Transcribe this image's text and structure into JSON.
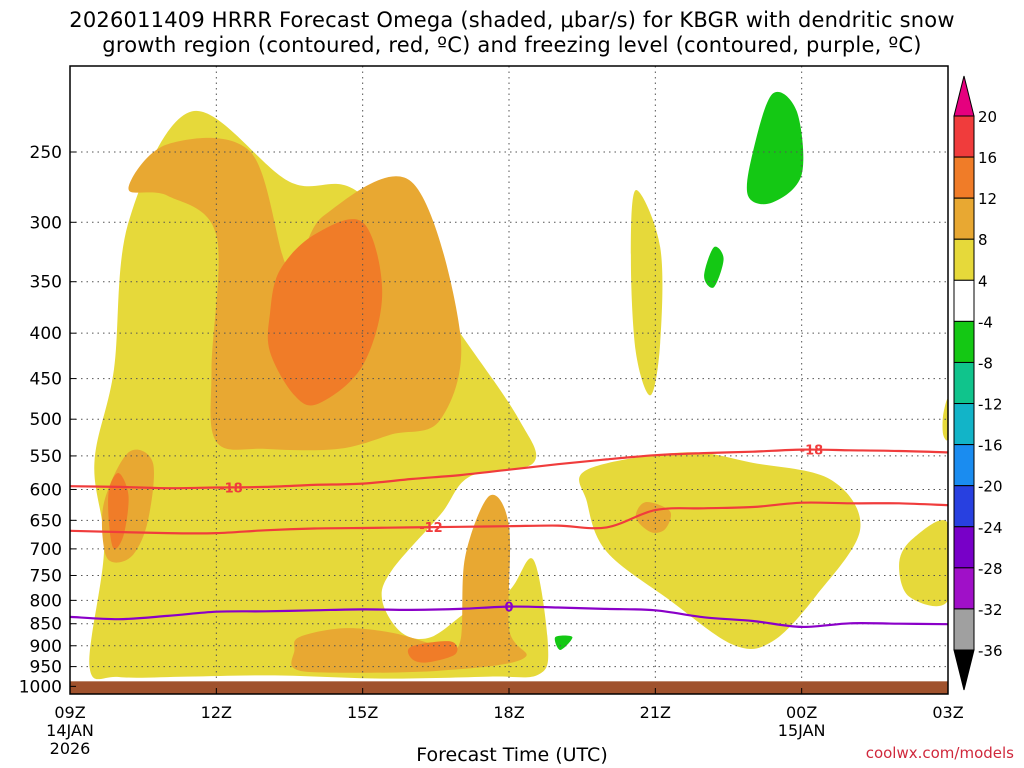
{
  "chart_data": {
    "type": "filled-contour",
    "title": "2026011409 HRRR Forecast Omega (shaded, μbar/s) for KBGR with dendritic snow",
    "title_line2": "growth region (contoured, red, ºC) and freezing level (contoured, purple, ºC)",
    "xlabel": "Forecast Time (UTC)",
    "credit": "coolwx.com/models",
    "x_range_hours": [
      0,
      18
    ],
    "y_range_hpa": [
      1020,
      200
    ],
    "x_ticks": [
      {
        "hour": 0,
        "label": "09Z",
        "sub1": "14JAN",
        "sub2": "2026"
      },
      {
        "hour": 3,
        "label": "12Z",
        "sub1": "",
        "sub2": ""
      },
      {
        "hour": 6,
        "label": "15Z",
        "sub1": "",
        "sub2": ""
      },
      {
        "hour": 9,
        "label": "18Z",
        "sub1": "",
        "sub2": ""
      },
      {
        "hour": 12,
        "label": "21Z",
        "sub1": "",
        "sub2": ""
      },
      {
        "hour": 15,
        "label": "00Z",
        "sub1": "15JAN",
        "sub2": ""
      },
      {
        "hour": 18,
        "label": "03Z",
        "sub1": "",
        "sub2": ""
      }
    ],
    "y_ticks": [
      250,
      300,
      350,
      400,
      450,
      500,
      550,
      600,
      650,
      700,
      750,
      800,
      850,
      900,
      950,
      1000
    ],
    "colorbar": {
      "levels": [
        "20",
        "16",
        "12",
        "8",
        "4",
        "-4",
        "-8",
        "-12",
        "-16",
        "-20",
        "-24",
        "-28",
        "-32",
        "-36"
      ],
      "colors": [
        "#e5007e",
        "#f03c3c",
        "#f07c28",
        "#e8a832",
        "#e6d93a",
        "#ffffff",
        "#14c814",
        "#10c48c",
        "#12b4c8",
        "#1a8cf0",
        "#2840e0",
        "#7800c8",
        "#a010c8",
        "#a0a0a0",
        "#000000"
      ]
    },
    "omega_regions": [
      {
        "level": "4",
        "color": "#e6d93a",
        "points": [
          [
            1.2,
            300
          ],
          [
            2.5,
            225
          ],
          [
            4.5,
            270
          ],
          [
            6.0,
            280
          ],
          [
            8.0,
            400
          ],
          [
            9.2,
            500
          ],
          [
            9.5,
            560
          ],
          [
            8.2,
            580
          ],
          [
            7.6,
            640
          ],
          [
            6.6,
            740
          ],
          [
            6.4,
            800
          ],
          [
            6.8,
            870
          ],
          [
            7.4,
            880
          ],
          [
            8.2,
            820
          ],
          [
            9.0,
            780
          ],
          [
            9.5,
            720
          ],
          [
            9.8,
            900
          ],
          [
            9.6,
            970
          ],
          [
            8.6,
            975
          ],
          [
            6.4,
            980
          ],
          [
            4.2,
            972
          ],
          [
            2.4,
            975
          ],
          [
            1.0,
            976
          ],
          [
            0.4,
            950
          ],
          [
            0.7,
            700
          ],
          [
            0.5,
            560
          ],
          [
            0.9,
            440
          ]
        ]
      },
      {
        "level": "4",
        "color": "#e6d93a",
        "points": [
          [
            10.6,
            570
          ],
          [
            12.6,
            545
          ],
          [
            14.0,
            560
          ],
          [
            15.6,
            585
          ],
          [
            16.2,
            665
          ],
          [
            15.3,
            790
          ],
          [
            14.4,
            890
          ],
          [
            13.6,
            898
          ],
          [
            12.3,
            800
          ],
          [
            11.0,
            705
          ],
          [
            10.6,
            620
          ]
        ]
      },
      {
        "level": "4",
        "color": "#e6d93a",
        "points": [
          [
            11.6,
            276
          ],
          [
            12.1,
            320
          ],
          [
            12.1,
            410
          ],
          [
            11.9,
            470
          ],
          [
            11.6,
            420
          ],
          [
            11.5,
            330
          ]
        ]
      },
      {
        "level": "4",
        "color": "#e6d93a",
        "points": [
          [
            17.3,
            680
          ],
          [
            18.0,
            655
          ],
          [
            18.0,
            800
          ],
          [
            17.2,
            792
          ],
          [
            17.0,
            725
          ]
        ]
      },
      {
        "level": "4",
        "color": "#e6d93a",
        "points": [
          [
            17.9,
            495
          ],
          [
            18.0,
            475
          ],
          [
            18.0,
            525
          ],
          [
            17.9,
            520
          ]
        ]
      },
      {
        "level": "8",
        "color": "#e8a832",
        "points": [
          [
            1.2,
            275
          ],
          [
            2.0,
            245
          ],
          [
            3.7,
            250
          ],
          [
            4.5,
            340
          ],
          [
            5.2,
            295
          ],
          [
            7.0,
            270
          ],
          [
            8.0,
            400
          ],
          [
            7.6,
            500
          ],
          [
            6.6,
            520
          ],
          [
            5.5,
            540
          ],
          [
            4.0,
            540
          ],
          [
            3.0,
            530
          ],
          [
            2.9,
            440
          ],
          [
            3.0,
            310
          ],
          [
            2.0,
            280
          ]
        ]
      },
      {
        "level": "8",
        "color": "#e8a832",
        "points": [
          [
            0.7,
            620
          ],
          [
            1.2,
            545
          ],
          [
            1.7,
            560
          ],
          [
            1.6,
            650
          ],
          [
            1.3,
            710
          ],
          [
            0.9,
            725
          ],
          [
            0.7,
            700
          ]
        ]
      },
      {
        "level": "8",
        "color": "#e8a832",
        "points": [
          [
            4.7,
            880
          ],
          [
            5.6,
            860
          ],
          [
            6.6,
            870
          ],
          [
            7.6,
            900
          ],
          [
            8.0,
            890
          ],
          [
            8.1,
            715
          ],
          [
            8.6,
            610
          ],
          [
            9.0,
            660
          ],
          [
            9.0,
            860
          ],
          [
            9.3,
            930
          ],
          [
            7.6,
            960
          ],
          [
            5.4,
            965
          ],
          [
            4.6,
            955
          ],
          [
            4.6,
            912
          ]
        ]
      },
      {
        "level": "8",
        "color": "#e8a832",
        "points": [
          [
            11.8,
            620
          ],
          [
            12.3,
            635
          ],
          [
            12.2,
            665
          ],
          [
            11.9,
            670
          ],
          [
            11.6,
            645
          ]
        ]
      },
      {
        "level": "12",
        "color": "#f07c28",
        "points": [
          [
            4.3,
            340
          ],
          [
            5.0,
            310
          ],
          [
            6.0,
            300
          ],
          [
            6.4,
            360
          ],
          [
            6.0,
            435
          ],
          [
            5.1,
            480
          ],
          [
            4.6,
            470
          ],
          [
            4.1,
            420
          ],
          [
            4.1,
            380
          ]
        ]
      },
      {
        "level": "12",
        "color": "#f07c28",
        "points": [
          [
            0.8,
            600
          ],
          [
            1.0,
            575
          ],
          [
            1.2,
            610
          ],
          [
            1.1,
            675
          ],
          [
            0.9,
            700
          ],
          [
            0.8,
            655
          ]
        ]
      },
      {
        "level": "12",
        "color": "#f07c28",
        "points": [
          [
            7.0,
            902
          ],
          [
            7.8,
            890
          ],
          [
            7.9,
            920
          ],
          [
            7.3,
            940
          ],
          [
            7.0,
            930
          ]
        ]
      },
      {
        "level": "-8",
        "color": "#14c814",
        "points": [
          [
            13.9,
            280
          ],
          [
            14.0,
            250
          ],
          [
            14.4,
            215
          ],
          [
            14.9,
            225
          ],
          [
            15.0,
            265
          ],
          [
            14.4,
            285
          ]
        ]
      },
      {
        "level": "-8",
        "color": "#14c814",
        "points": [
          [
            13.0,
            345
          ],
          [
            13.2,
            320
          ],
          [
            13.4,
            330
          ],
          [
            13.2,
            355
          ]
        ]
      },
      {
        "level": "-8",
        "color": "#14c814",
        "points": [
          [
            9.95,
            880
          ],
          [
            10.3,
            880
          ],
          [
            10.05,
            910
          ]
        ]
      }
    ],
    "contours": [
      {
        "name": "minus18",
        "label": "-18",
        "color": "#f03c3c",
        "label_hour": 3.3,
        "points": [
          [
            0,
            595
          ],
          [
            1,
            596
          ],
          [
            2,
            598
          ],
          [
            3,
            597
          ],
          [
            4,
            596
          ],
          [
            5,
            593
          ],
          [
            6,
            591
          ],
          [
            7,
            584
          ],
          [
            8,
            578
          ],
          [
            9,
            570
          ],
          [
            10,
            562
          ],
          [
            11,
            555
          ],
          [
            12,
            549
          ],
          [
            13,
            546
          ],
          [
            14,
            544
          ],
          [
            15,
            541
          ],
          [
            16,
            542
          ],
          [
            17,
            543
          ],
          [
            18,
            545
          ]
        ]
      },
      {
        "name": "minus12",
        "label": "-12",
        "color": "#f03c3c",
        "label_hour": 7.4,
        "points": [
          [
            0,
            668
          ],
          [
            2,
            672
          ],
          [
            3,
            672
          ],
          [
            4,
            667
          ],
          [
            5,
            664
          ],
          [
            6,
            663
          ],
          [
            7,
            662
          ],
          [
            8,
            661
          ],
          [
            9,
            660
          ],
          [
            10,
            659
          ],
          [
            11,
            662
          ],
          [
            12,
            633
          ],
          [
            13,
            630
          ],
          [
            14,
            628
          ],
          [
            15,
            621
          ],
          [
            16,
            622
          ],
          [
            17,
            622
          ],
          [
            18,
            625
          ]
        ]
      },
      {
        "name": "freezing",
        "label": "0",
        "color": "#8a00c8",
        "label_hour": 9.0,
        "points": [
          [
            0,
            835
          ],
          [
            1,
            840
          ],
          [
            2,
            833
          ],
          [
            3,
            824
          ],
          [
            4,
            823
          ],
          [
            5,
            821
          ],
          [
            6,
            819
          ],
          [
            7,
            820
          ],
          [
            8,
            818
          ],
          [
            9,
            813
          ],
          [
            10,
            815
          ],
          [
            11,
            818
          ],
          [
            12,
            821
          ],
          [
            13,
            836
          ],
          [
            14,
            844
          ],
          [
            15,
            857
          ],
          [
            16,
            849
          ],
          [
            17,
            850
          ],
          [
            18,
            851
          ]
        ]
      }
    ],
    "terrain": {
      "color": "#a0522d",
      "top_hpa": 987
    }
  }
}
